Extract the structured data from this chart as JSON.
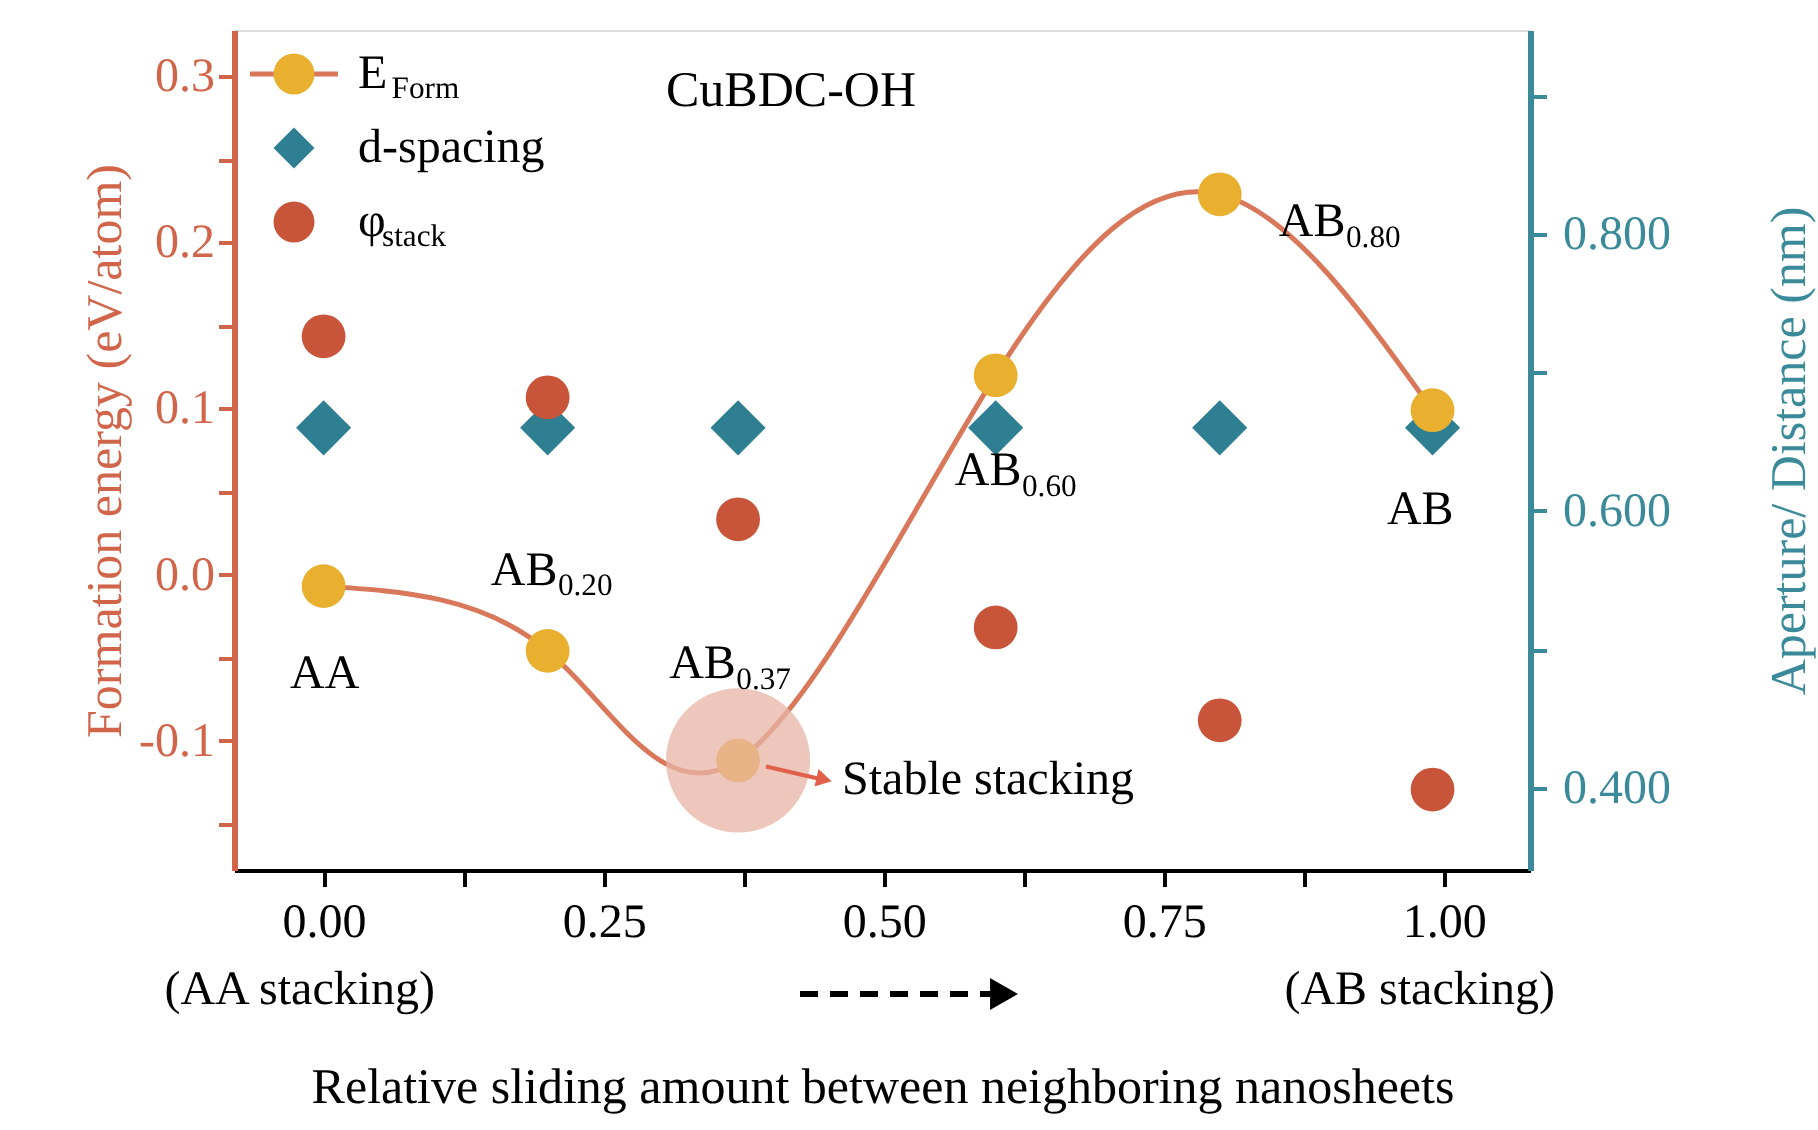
{
  "chart_data": {
    "type": "line",
    "title": "CuBDC-OH",
    "xlabel": "Relative sliding amount between neighboring nanosheets",
    "ylabel": "Formation energy (eV/atom)",
    "y2label": "Aperture/ Distance (nm)",
    "x": [
      0,
      0.2,
      0.37,
      0.6,
      0.8,
      0.99
    ],
    "series": [
      {
        "name": "E$_{Form}$",
        "marker": "circle",
        "color": "#e8b02e",
        "values": [
          -0.007,
          -0.046,
          -0.112,
          0.12,
          0.229,
          0.099
        ]
      },
      {
        "name": "d-spacing",
        "type": "scatter",
        "marker": "diamond",
        "axis": "y2",
        "color": "#2e7f91",
        "values": [
          0.66,
          0.66,
          0.66,
          0.66,
          0.66,
          0.66
        ]
      },
      {
        "name": "φ$_{stack}$",
        "type": "scatter",
        "marker": "circle",
        "axis": "y2",
        "color": "#c8553a",
        "values": [
          0.726,
          0.682,
          0.594,
          0.516,
          0.449,
          0.399
        ]
      }
    ],
    "xlim": [
      -0.08,
      1.077
    ],
    "xticks": [
      {
        "value": 0,
        "label": "0.00"
      },
      {
        "value": 0.125,
        "label": null
      },
      {
        "value": 0.25,
        "label": "0.25"
      },
      {
        "value": 0.375,
        "label": null
      },
      {
        "value": 0.5,
        "label": "0.50"
      },
      {
        "value": 0.625,
        "label": null
      },
      {
        "value": 0.75,
        "label": "0.75"
      },
      {
        "value": 0.875,
        "label": null
      },
      {
        "value": 1,
        "label": "1.00"
      }
    ],
    "ylim": [
      -0.178,
      0.328
    ],
    "yticks": [
      {
        "value": -0.15,
        "label": null
      },
      {
        "value": -0.1,
        "label": "-0.1"
      },
      {
        "value": -0.05,
        "label": null
      },
      {
        "value": 0,
        "label": "0.0"
      },
      {
        "value": 0.05,
        "label": null
      },
      0.1,
      {
        "value": 0.15,
        "label": null
      },
      0.2,
      {
        "value": 0.25,
        "label": null
      },
      0.3
    ],
    "y2lim": [
      0.341,
      0.947
    ],
    "y2ticks": [
      {
        "value": 0.4,
        "label": "0.400"
      },
      {
        "value": 0.5,
        "label": null
      },
      {
        "value": 0.6,
        "label": "0.600"
      },
      {
        "value": 0.7,
        "label": null
      },
      {
        "value": 0.8,
        "label": "0.800"
      },
      {
        "value": 0.9,
        "label": null
      }
    ],
    "legend": "top left",
    "annotations": [
      {
        "text": "AA",
        "x": 0,
        "y": -0.007
      },
      {
        "text": "AB$_{0.20}$",
        "x": 0.2,
        "y": -0.046
      },
      {
        "text": "AB$_{0.37}$",
        "x": 0.37,
        "y": -0.112
      },
      {
        "text": "AB$_{0.60}$",
        "x": 0.6,
        "y": 0.12
      },
      {
        "text": "AB$_{0.80}$",
        "x": 0.8,
        "y": 0.229
      },
      {
        "text": "AB",
        "x": 0.99,
        "y": 0.099
      },
      {
        "text": "Stable stacking",
        "x": 0.37,
        "y": -0.112
      },
      "(AA stacking)",
      "(AB stacking)"
    ]
  }
}
